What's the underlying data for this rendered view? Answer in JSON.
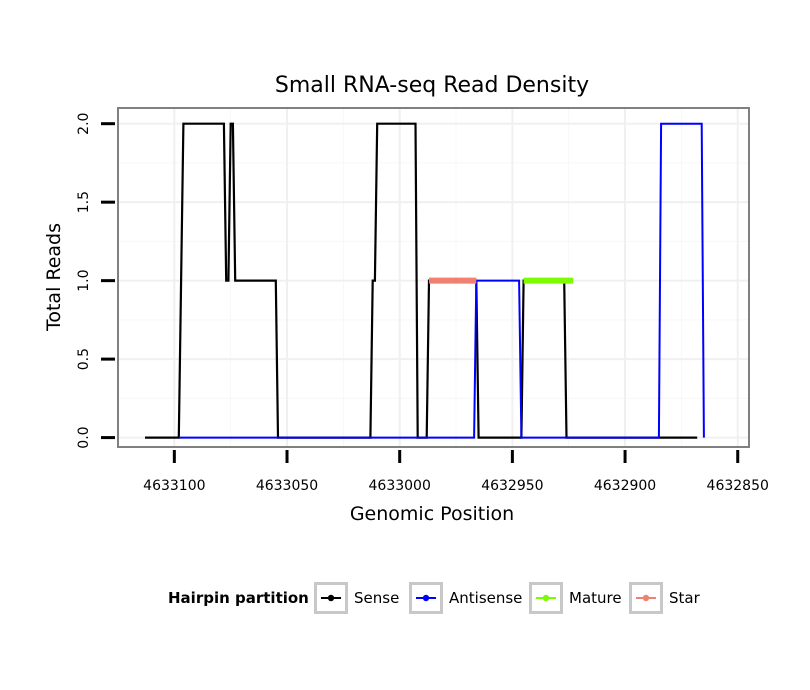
{
  "chart_data": {
    "type": "line",
    "title": "Small RNA-seq Read Density",
    "xlabel": "Genomic Position",
    "ylabel": "Total Reads",
    "xlim": [
      4633125,
      4632845
    ],
    "x_reversed": true,
    "ylim": [
      -0.06,
      2.1
    ],
    "x_ticks": [
      4633100,
      4633050,
      4633000,
      4632950,
      4632900,
      4632850
    ],
    "x_tick_labels": [
      "4633100",
      "4633050",
      "4633000",
      "4632950",
      "4632900",
      "4632850"
    ],
    "y_ticks": [
      0,
      0.5,
      1,
      1.5,
      2
    ],
    "y_tick_labels": [
      "0.0",
      "0.5",
      "1.0",
      "1.5",
      "2.0"
    ],
    "grid": true,
    "legend": {
      "title": "Hairpin partition",
      "position": "bottom",
      "entries": [
        "Sense",
        "Antisense",
        "Mature",
        "Star"
      ]
    },
    "colors": {
      "Sense": "#000000",
      "Antisense": "#0000ff",
      "Mature": "#7cfc00",
      "Star": "#f08070"
    },
    "series": [
      {
        "name": "Sense",
        "points": [
          [
            4633113,
            0
          ],
          [
            4633098,
            0
          ],
          [
            4633096,
            2
          ],
          [
            4633078,
            2
          ],
          [
            4633077,
            1
          ],
          [
            4633076,
            1
          ],
          [
            4633075,
            2
          ],
          [
            4633074,
            2
          ],
          [
            4633073,
            1
          ],
          [
            4633055,
            1
          ],
          [
            4633054,
            0
          ],
          [
            4633013,
            0
          ],
          [
            4633012,
            1
          ],
          [
            4633011,
            1
          ],
          [
            4633010,
            2
          ],
          [
            4632993,
            2
          ],
          [
            4632992,
            0
          ],
          [
            4632988,
            0
          ],
          [
            4632987,
            1
          ],
          [
            4632966,
            1
          ],
          [
            4632965,
            0
          ],
          [
            4632946,
            0
          ],
          [
            4632945,
            1
          ],
          [
            4632927,
            1
          ],
          [
            4632926,
            0
          ],
          [
            4632868,
            0
          ]
        ]
      },
      {
        "name": "Antisense",
        "points": [
          [
            4633098,
            0
          ],
          [
            4632967,
            0
          ],
          [
            4632966,
            1
          ],
          [
            4632947,
            1
          ],
          [
            4632946,
            0
          ],
          [
            4632925,
            0
          ],
          [
            4632924,
            0
          ],
          [
            4632885,
            0
          ],
          [
            4632884,
            2
          ],
          [
            4632866,
            2
          ],
          [
            4632865,
            0
          ]
        ]
      },
      {
        "name": "Star",
        "points": [
          [
            4632987,
            1
          ],
          [
            4632966,
            1
          ]
        ]
      },
      {
        "name": "Mature",
        "points": [
          [
            4632945,
            1
          ],
          [
            4632923,
            1
          ]
        ]
      }
    ]
  }
}
